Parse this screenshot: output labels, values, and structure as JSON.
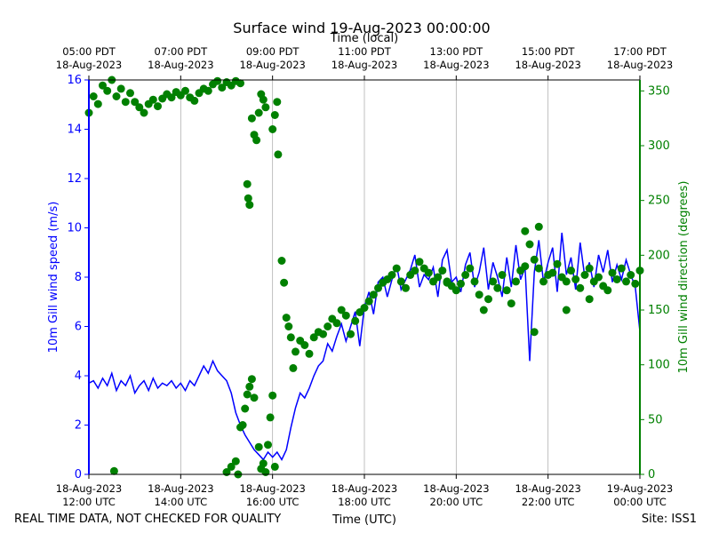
{
  "chart_data": {
    "type": "line",
    "title": "Surface wind 19-Aug-2023 00:00:00",
    "top_axis_label": "Time (local)",
    "xlabel": "Time (UTC)",
    "ylabel_left": "10m Gill wind speed (m/s)",
    "ylabel_right": "10m Gill wind direction (degrees)",
    "footer_left": "REAL TIME DATA, NOT CHECKED FOR QUALITY",
    "footer_right": "Site: ISS1",
    "x_range_hours_utc": [
      12,
      24
    ],
    "y_left_range": [
      0,
      16
    ],
    "y_right_range": [
      0,
      360
    ],
    "grid": "vertical",
    "colors": {
      "speed": "#0000ff",
      "direction": "#008000",
      "grid": "#b0b0b0",
      "axis": "#000000"
    },
    "left_ticks": [
      "0",
      "2",
      "4",
      "6",
      "8",
      "10",
      "12",
      "14",
      "16"
    ],
    "right_ticks": [
      "0",
      "50",
      "100",
      "150",
      "200",
      "250",
      "300",
      "350"
    ],
    "bottom_ticks": [
      {
        "hour": 12,
        "line1": "18-Aug-2023",
        "line2": "12:00 UTC"
      },
      {
        "hour": 14,
        "line1": "18-Aug-2023",
        "line2": "14:00 UTC"
      },
      {
        "hour": 16,
        "line1": "18-Aug-2023",
        "line2": "16:00 UTC"
      },
      {
        "hour": 18,
        "line1": "18-Aug-2023",
        "line2": "18:00 UTC"
      },
      {
        "hour": 20,
        "line1": "18-Aug-2023",
        "line2": "20:00 UTC"
      },
      {
        "hour": 22,
        "line1": "18-Aug-2023",
        "line2": "22:00 UTC"
      },
      {
        "hour": 24,
        "line1": "19-Aug-2023",
        "line2": "00:00 UTC"
      }
    ],
    "top_ticks": [
      {
        "hour": 12,
        "line1": "05:00 PDT",
        "line2": "18-Aug-2023"
      },
      {
        "hour": 14,
        "line1": "07:00 PDT",
        "line2": "18-Aug-2023"
      },
      {
        "hour": 16,
        "line1": "09:00 PDT",
        "line2": "18-Aug-2023"
      },
      {
        "hour": 18,
        "line1": "11:00 PDT",
        "line2": "18-Aug-2023"
      },
      {
        "hour": 20,
        "line1": "13:00 PDT",
        "line2": "18-Aug-2023"
      },
      {
        "hour": 22,
        "line1": "15:00 PDT",
        "line2": "18-Aug-2023"
      },
      {
        "hour": 24,
        "line1": "17:00 PDT",
        "line2": "18-Aug-2023"
      }
    ],
    "series": [
      {
        "name": "10m Gill wind speed (m/s)",
        "axis": "left",
        "style": "line",
        "points": [
          [
            12.0,
            3.7
          ],
          [
            12.1,
            3.8
          ],
          [
            12.2,
            3.5
          ],
          [
            12.3,
            3.9
          ],
          [
            12.4,
            3.6
          ],
          [
            12.5,
            4.1
          ],
          [
            12.6,
            3.4
          ],
          [
            12.7,
            3.8
          ],
          [
            12.8,
            3.6
          ],
          [
            12.9,
            4.0
          ],
          [
            13.0,
            3.3
          ],
          [
            13.1,
            3.6
          ],
          [
            13.2,
            3.8
          ],
          [
            13.3,
            3.4
          ],
          [
            13.4,
            3.9
          ],
          [
            13.5,
            3.5
          ],
          [
            13.6,
            3.7
          ],
          [
            13.7,
            3.6
          ],
          [
            13.8,
            3.8
          ],
          [
            13.9,
            3.5
          ],
          [
            14.0,
            3.7
          ],
          [
            14.1,
            3.4
          ],
          [
            14.2,
            3.8
          ],
          [
            14.3,
            3.6
          ],
          [
            14.4,
            4.0
          ],
          [
            14.5,
            4.4
          ],
          [
            14.6,
            4.1
          ],
          [
            14.7,
            4.6
          ],
          [
            14.8,
            4.2
          ],
          [
            14.9,
            4.0
          ],
          [
            15.0,
            3.8
          ],
          [
            15.1,
            3.3
          ],
          [
            15.2,
            2.5
          ],
          [
            15.3,
            2.0
          ],
          [
            15.4,
            1.6
          ],
          [
            15.5,
            1.3
          ],
          [
            15.6,
            1.0
          ],
          [
            15.7,
            0.8
          ],
          [
            15.8,
            0.6
          ],
          [
            15.9,
            0.9
          ],
          [
            16.0,
            0.7
          ],
          [
            16.1,
            0.9
          ],
          [
            16.2,
            0.6
          ],
          [
            16.3,
            1.0
          ],
          [
            16.4,
            1.9
          ],
          [
            16.5,
            2.7
          ],
          [
            16.6,
            3.3
          ],
          [
            16.7,
            3.1
          ],
          [
            16.8,
            3.5
          ],
          [
            16.9,
            4.0
          ],
          [
            17.0,
            4.4
          ],
          [
            17.1,
            4.6
          ],
          [
            17.2,
            5.3
          ],
          [
            17.3,
            5.0
          ],
          [
            17.4,
            5.6
          ],
          [
            17.5,
            6.1
          ],
          [
            17.6,
            5.4
          ],
          [
            17.7,
            6.0
          ],
          [
            17.8,
            6.6
          ],
          [
            17.9,
            5.2
          ],
          [
            18.0,
            6.8
          ],
          [
            18.1,
            7.4
          ],
          [
            18.2,
            6.5
          ],
          [
            18.3,
            7.8
          ],
          [
            18.4,
            8.0
          ],
          [
            18.5,
            7.2
          ],
          [
            18.6,
            7.9
          ],
          [
            18.7,
            8.5
          ],
          [
            18.8,
            7.5
          ],
          [
            18.9,
            7.9
          ],
          [
            19.0,
            8.3
          ],
          [
            19.1,
            8.9
          ],
          [
            19.2,
            7.6
          ],
          [
            19.3,
            8.1
          ],
          [
            19.4,
            7.9
          ],
          [
            19.5,
            8.4
          ],
          [
            19.6,
            7.2
          ],
          [
            19.7,
            8.7
          ],
          [
            19.8,
            9.1
          ],
          [
            19.9,
            7.8
          ],
          [
            20.0,
            8.0
          ],
          [
            20.1,
            7.4
          ],
          [
            20.2,
            8.5
          ],
          [
            20.3,
            9.0
          ],
          [
            20.4,
            7.6
          ],
          [
            20.5,
            8.2
          ],
          [
            20.6,
            9.2
          ],
          [
            20.7,
            7.5
          ],
          [
            20.8,
            8.6
          ],
          [
            20.9,
            8.0
          ],
          [
            21.0,
            7.2
          ],
          [
            21.1,
            8.8
          ],
          [
            21.2,
            7.6
          ],
          [
            21.3,
            9.3
          ],
          [
            21.4,
            7.9
          ],
          [
            21.5,
            8.4
          ],
          [
            21.6,
            4.6
          ],
          [
            21.7,
            8.2
          ],
          [
            21.8,
            9.5
          ],
          [
            21.9,
            7.8
          ],
          [
            22.0,
            8.6
          ],
          [
            22.1,
            9.2
          ],
          [
            22.2,
            7.4
          ],
          [
            22.3,
            9.8
          ],
          [
            22.4,
            8.1
          ],
          [
            22.5,
            8.8
          ],
          [
            22.6,
            7.5
          ],
          [
            22.7,
            9.4
          ],
          [
            22.8,
            8.0
          ],
          [
            22.9,
            8.6
          ],
          [
            23.0,
            7.6
          ],
          [
            23.1,
            8.9
          ],
          [
            23.2,
            8.2
          ],
          [
            23.3,
            9.1
          ],
          [
            23.4,
            7.8
          ],
          [
            23.5,
            8.5
          ],
          [
            23.6,
            7.9
          ],
          [
            23.7,
            8.7
          ],
          [
            23.8,
            8.1
          ],
          [
            23.9,
            7.6
          ],
          [
            24.0,
            5.8
          ]
        ]
      },
      {
        "name": "10m Gill wind direction (degrees)",
        "axis": "right",
        "style": "points",
        "points": [
          [
            12.0,
            330
          ],
          [
            12.1,
            345
          ],
          [
            12.2,
            338
          ],
          [
            12.3,
            355
          ],
          [
            12.4,
            350
          ],
          [
            12.5,
            360
          ],
          [
            12.55,
            3
          ],
          [
            12.6,
            345
          ],
          [
            12.7,
            352
          ],
          [
            12.8,
            340
          ],
          [
            12.9,
            348
          ],
          [
            13.0,
            340
          ],
          [
            13.1,
            335
          ],
          [
            13.2,
            330
          ],
          [
            13.3,
            338
          ],
          [
            13.4,
            342
          ],
          [
            13.5,
            336
          ],
          [
            13.6,
            343
          ],
          [
            13.7,
            347
          ],
          [
            13.8,
            344
          ],
          [
            13.9,
            349
          ],
          [
            14.0,
            346
          ],
          [
            14.1,
            350
          ],
          [
            14.2,
            344
          ],
          [
            14.3,
            341
          ],
          [
            14.4,
            348
          ],
          [
            14.5,
            352
          ],
          [
            14.6,
            350
          ],
          [
            14.7,
            356
          ],
          [
            14.8,
            359
          ],
          [
            14.9,
            353
          ],
          [
            15.0,
            358
          ],
          [
            15.1,
            355
          ],
          [
            15.2,
            359
          ],
          [
            15.3,
            357
          ],
          [
            15.0,
            2
          ],
          [
            15.1,
            7
          ],
          [
            15.2,
            12
          ],
          [
            15.25,
            0
          ],
          [
            15.3,
            43
          ],
          [
            15.35,
            45
          ],
          [
            15.4,
            60
          ],
          [
            15.45,
            73
          ],
          [
            15.5,
            80
          ],
          [
            15.55,
            87
          ],
          [
            15.6,
            70
          ],
          [
            15.7,
            25
          ],
          [
            15.75,
            5
          ],
          [
            15.8,
            10
          ],
          [
            15.85,
            2
          ],
          [
            15.9,
            27
          ],
          [
            15.95,
            52
          ],
          [
            16.0,
            72
          ],
          [
            16.05,
            7
          ],
          [
            15.45,
            265
          ],
          [
            15.47,
            252
          ],
          [
            15.5,
            246
          ],
          [
            15.55,
            325
          ],
          [
            15.6,
            310
          ],
          [
            15.65,
            305
          ],
          [
            15.7,
            330
          ],
          [
            15.75,
            347
          ],
          [
            15.8,
            342
          ],
          [
            15.85,
            335
          ],
          [
            16.0,
            315
          ],
          [
            16.05,
            328
          ],
          [
            16.1,
            340
          ],
          [
            16.12,
            292
          ],
          [
            16.2,
            195
          ],
          [
            16.25,
            175
          ],
          [
            16.3,
            143
          ],
          [
            16.35,
            135
          ],
          [
            16.4,
            125
          ],
          [
            16.45,
            97
          ],
          [
            16.5,
            112
          ],
          [
            16.6,
            122
          ],
          [
            16.7,
            118
          ],
          [
            16.8,
            110
          ],
          [
            16.9,
            125
          ],
          [
            17.0,
            130
          ],
          [
            17.1,
            128
          ],
          [
            17.2,
            135
          ],
          [
            17.3,
            142
          ],
          [
            17.4,
            138
          ],
          [
            17.5,
            150
          ],
          [
            17.6,
            145
          ],
          [
            17.7,
            128
          ],
          [
            17.8,
            140
          ],
          [
            17.9,
            148
          ],
          [
            18.0,
            152
          ],
          [
            18.1,
            158
          ],
          [
            18.2,
            164
          ],
          [
            18.3,
            170
          ],
          [
            18.4,
            175
          ],
          [
            18.5,
            178
          ],
          [
            18.6,
            182
          ],
          [
            18.7,
            188
          ],
          [
            18.8,
            176
          ],
          [
            18.9,
            170
          ],
          [
            19.0,
            182
          ],
          [
            19.1,
            186
          ],
          [
            19.2,
            194
          ],
          [
            19.3,
            188
          ],
          [
            19.4,
            184
          ],
          [
            19.5,
            176
          ],
          [
            19.6,
            180
          ],
          [
            19.7,
            186
          ],
          [
            19.8,
            176
          ],
          [
            19.9,
            172
          ],
          [
            20.0,
            168
          ],
          [
            20.1,
            174
          ],
          [
            20.2,
            182
          ],
          [
            20.3,
            188
          ],
          [
            20.4,
            176
          ],
          [
            20.5,
            164
          ],
          [
            20.6,
            150
          ],
          [
            20.7,
            160
          ],
          [
            20.8,
            176
          ],
          [
            20.9,
            170
          ],
          [
            21.0,
            182
          ],
          [
            21.1,
            168
          ],
          [
            21.2,
            156
          ],
          [
            21.3,
            176
          ],
          [
            21.4,
            186
          ],
          [
            21.5,
            190
          ],
          [
            21.6,
            210
          ],
          [
            21.7,
            196
          ],
          [
            21.8,
            188
          ],
          [
            21.9,
            176
          ],
          [
            22.0,
            182
          ],
          [
            22.1,
            184
          ],
          [
            22.2,
            192
          ],
          [
            22.3,
            180
          ],
          [
            22.4,
            176
          ],
          [
            22.5,
            186
          ],
          [
            22.6,
            178
          ],
          [
            22.7,
            170
          ],
          [
            22.8,
            182
          ],
          [
            22.9,
            188
          ],
          [
            23.0,
            176
          ],
          [
            23.1,
            180
          ],
          [
            23.2,
            172
          ],
          [
            23.3,
            168
          ],
          [
            23.4,
            184
          ],
          [
            23.5,
            178
          ],
          [
            23.6,
            188
          ],
          [
            23.7,
            176
          ],
          [
            23.8,
            182
          ],
          [
            23.9,
            174
          ],
          [
            24.0,
            186
          ],
          [
            19.8,
            175
          ],
          [
            21.5,
            222
          ],
          [
            21.7,
            130
          ],
          [
            21.8,
            226
          ],
          [
            22.4,
            150
          ],
          [
            22.9,
            160
          ]
        ]
      }
    ]
  }
}
